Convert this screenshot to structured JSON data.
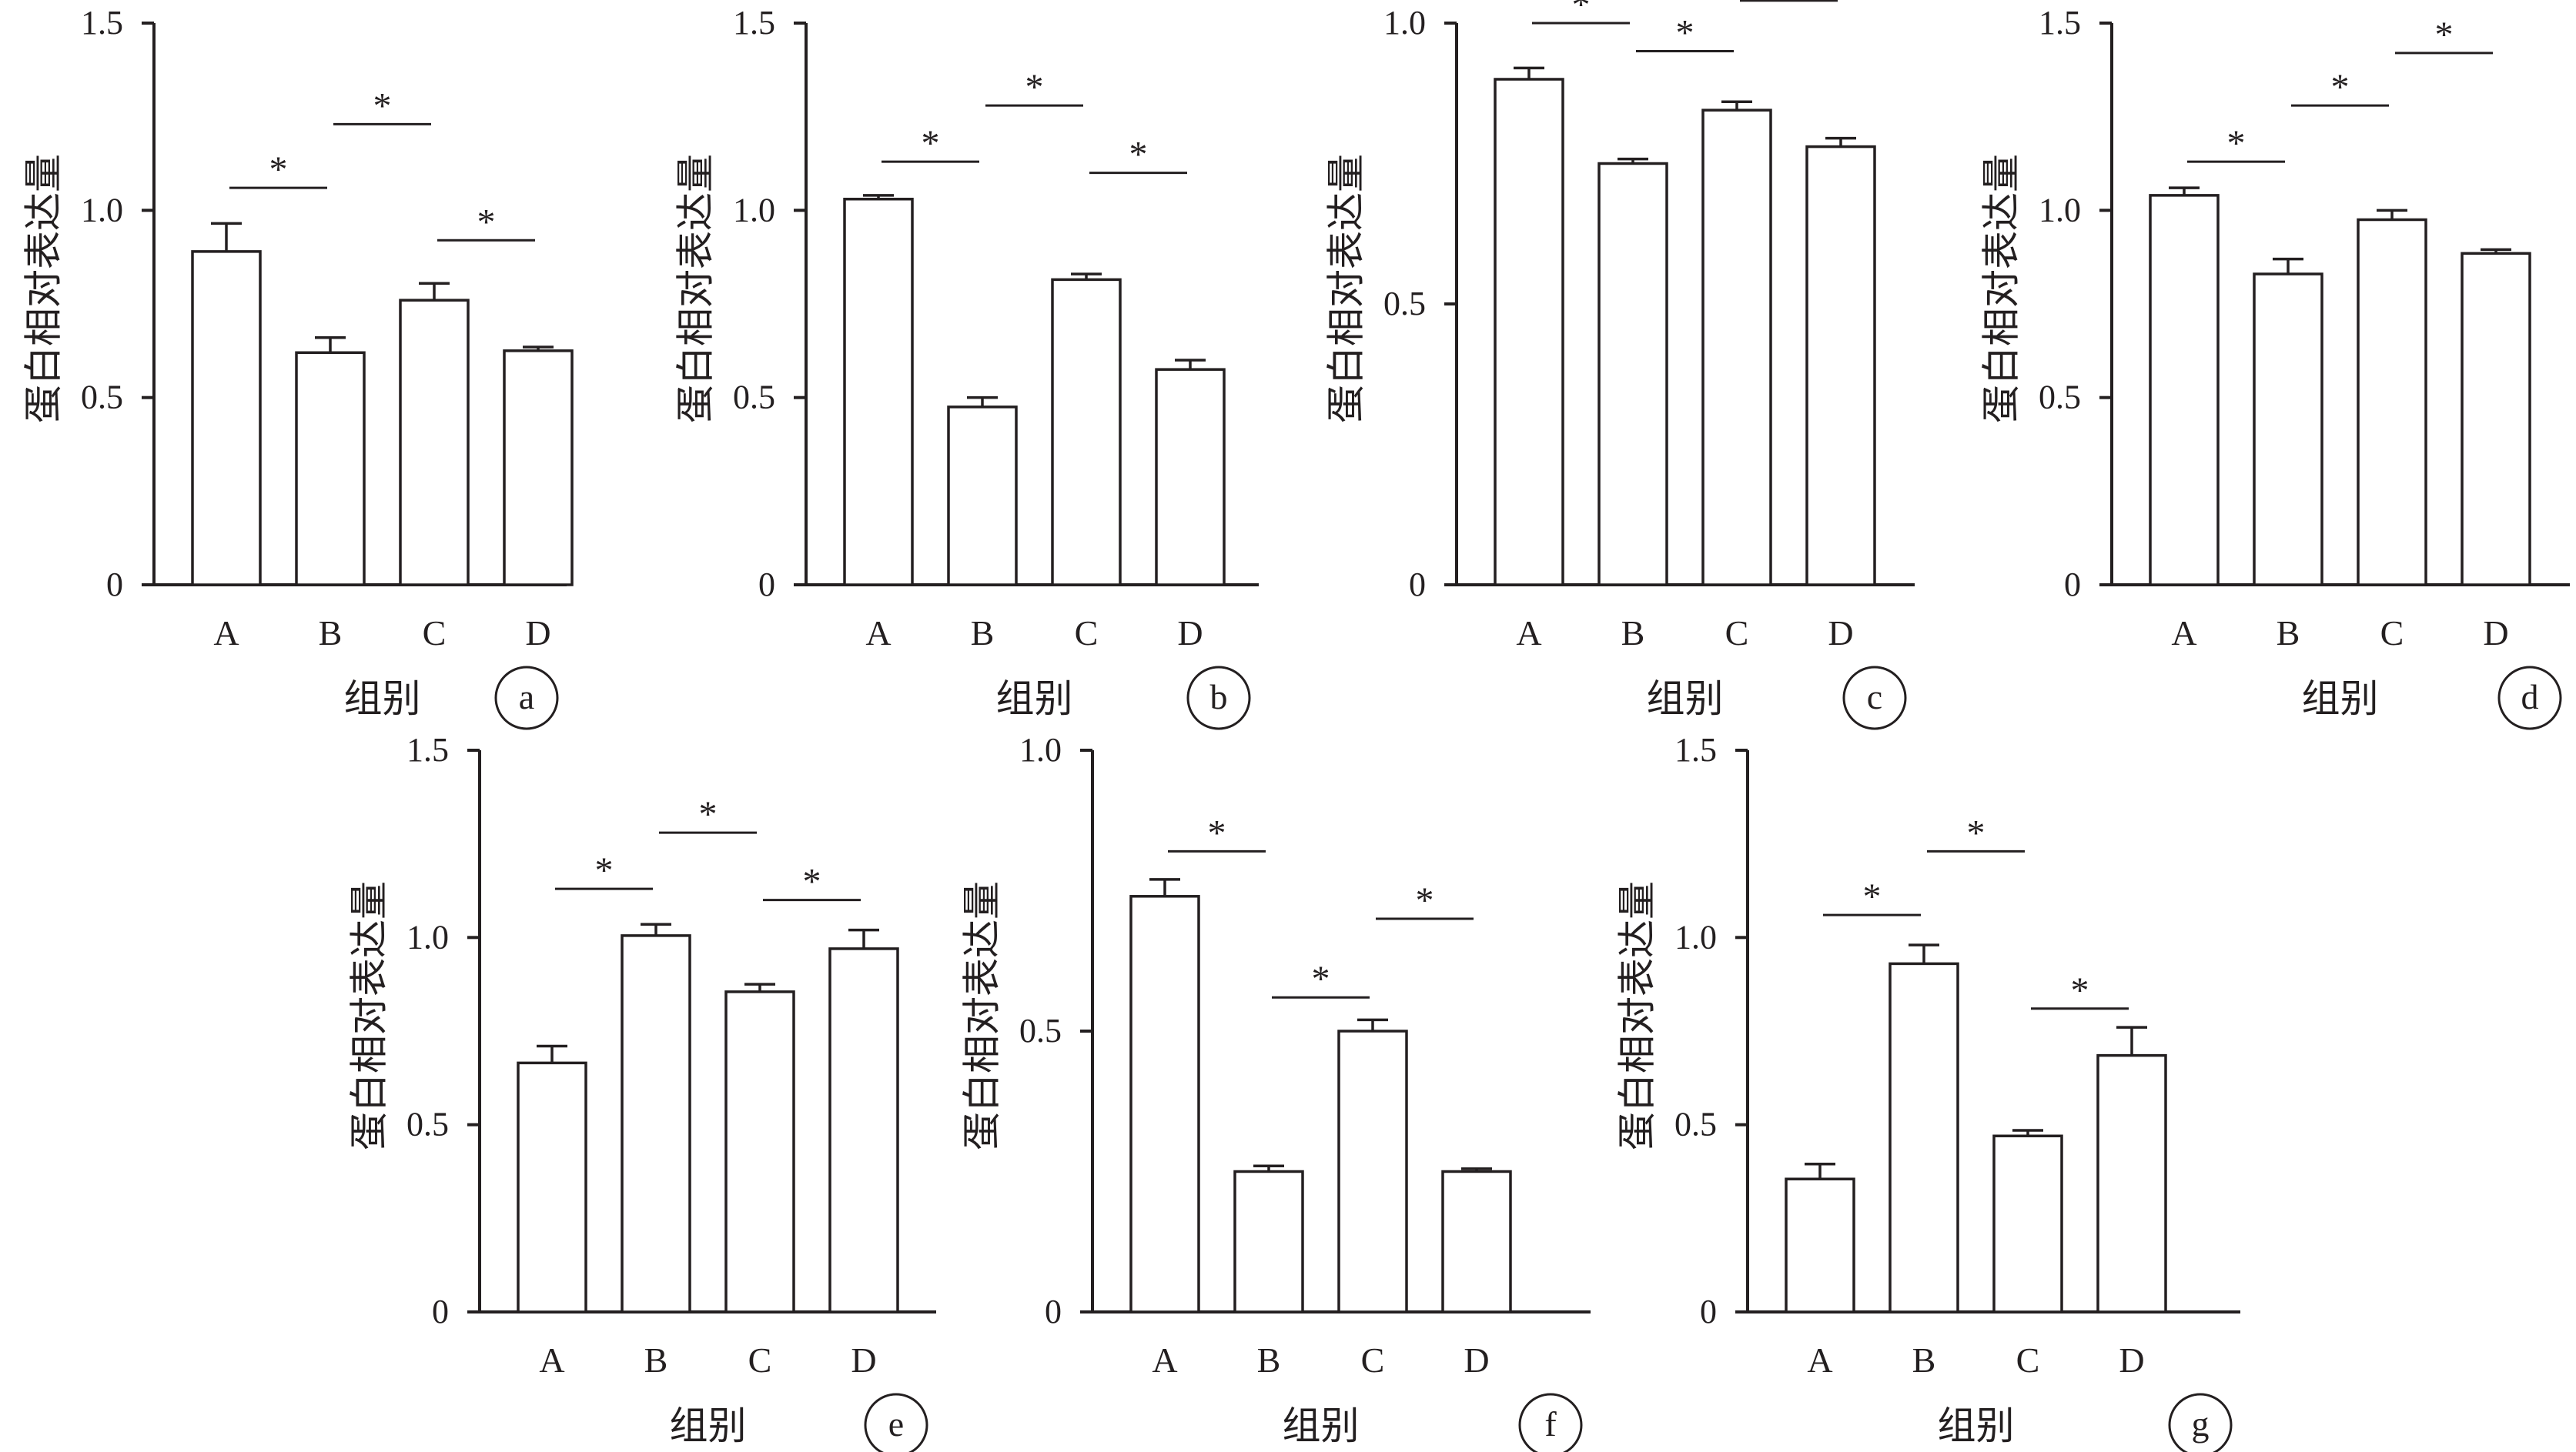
{
  "charts": [
    {
      "panel": "a",
      "type": "bar",
      "ylim": [
        0,
        1.5
      ],
      "ticks": [
        "0",
        "0.5",
        "1.0",
        "1.5"
      ],
      "xlabel": "组别",
      "ylabel": "蛋白相对表达量",
      "categories": [
        "A",
        "B",
        "C",
        "D"
      ],
      "values": [
        0.89,
        0.62,
        0.76,
        0.625
      ],
      "errors": [
        0.075,
        0.04,
        0.045,
        0.01
      ],
      "significance": [
        {
          "from": 0,
          "to": 1,
          "y": 1.06,
          "label": "*"
        },
        {
          "from": 1,
          "to": 2,
          "y": 1.23,
          "label": "*"
        },
        {
          "from": 2,
          "to": 3,
          "y": 0.92,
          "label": "*"
        }
      ]
    },
    {
      "panel": "b",
      "type": "bar",
      "ylim": [
        0,
        1.5
      ],
      "ticks": [
        "0",
        "0.5",
        "1.0",
        "1.5"
      ],
      "xlabel": "组别",
      "ylabel": "蛋白相对表达量",
      "categories": [
        "A",
        "B",
        "C",
        "D"
      ],
      "values": [
        1.03,
        0.475,
        0.815,
        0.575
      ],
      "errors": [
        0.01,
        0.025,
        0.015,
        0.025
      ],
      "significance": [
        {
          "from": 0,
          "to": 1,
          "y": 1.13,
          "label": "*"
        },
        {
          "from": 1,
          "to": 2,
          "y": 1.28,
          "label": "*"
        },
        {
          "from": 2,
          "to": 3,
          "y": 1.1,
          "label": "*"
        }
      ]
    },
    {
      "panel": "c",
      "type": "bar",
      "ylim": [
        0,
        1.0
      ],
      "ticks": [
        "0",
        "0.5",
        "1.0"
      ],
      "xlabel": "组别",
      "ylabel": "蛋白相对表达量",
      "categories": [
        "A",
        "B",
        "C",
        "D"
      ],
      "values": [
        0.9,
        0.75,
        0.845,
        0.78
      ],
      "errors": [
        0.02,
        0.008,
        0.015,
        0.015
      ],
      "significance": [
        {
          "from": 0,
          "to": 1,
          "y": 1.0,
          "label": "*"
        },
        {
          "from": 1,
          "to": 2,
          "y": 0.95,
          "label": "*"
        },
        {
          "from": 2,
          "to": 3,
          "y": 1.04,
          "label": "*"
        }
      ]
    },
    {
      "panel": "d",
      "type": "bar",
      "ylim": [
        0,
        1.5
      ],
      "ticks": [
        "0",
        "0.5",
        "1.0",
        "1.5"
      ],
      "xlabel": "组别",
      "ylabel": "蛋白相对表达量",
      "categories": [
        "A",
        "B",
        "C",
        "D"
      ],
      "values": [
        1.04,
        0.83,
        0.975,
        0.885
      ],
      "errors": [
        0.02,
        0.04,
        0.025,
        0.01
      ],
      "significance": [
        {
          "from": 0,
          "to": 1,
          "y": 1.13,
          "label": "*"
        },
        {
          "from": 1,
          "to": 2,
          "y": 1.28,
          "label": "*"
        },
        {
          "from": 2,
          "to": 3,
          "y": 1.42,
          "label": "*"
        }
      ]
    },
    {
      "panel": "e",
      "type": "bar",
      "ylim": [
        0,
        1.5
      ],
      "ticks": [
        "0",
        "0.5",
        "1.0",
        "1.5"
      ],
      "xlabel": "组别",
      "ylabel": "蛋白相对表达量",
      "categories": [
        "A",
        "B",
        "C",
        "D"
      ],
      "values": [
        0.665,
        1.005,
        0.855,
        0.97
      ],
      "errors": [
        0.045,
        0.03,
        0.02,
        0.05
      ],
      "significance": [
        {
          "from": 0,
          "to": 1,
          "y": 1.13,
          "label": "*"
        },
        {
          "from": 1,
          "to": 2,
          "y": 1.28,
          "label": "*"
        },
        {
          "from": 2,
          "to": 3,
          "y": 1.1,
          "label": "*"
        }
      ]
    },
    {
      "panel": "f",
      "type": "bar",
      "ylim": [
        0,
        1.0
      ],
      "ticks": [
        "0",
        "0.5",
        "1.0"
      ],
      "xlabel": "组别",
      "ylabel": "蛋白相对表达量",
      "categories": [
        "A",
        "B",
        "C",
        "D"
      ],
      "values": [
        0.74,
        0.25,
        0.5,
        0.25
      ],
      "errors": [
        0.03,
        0.01,
        0.02,
        0.005
      ],
      "significance": [
        {
          "from": 0,
          "to": 1,
          "y": 0.82,
          "label": "*"
        },
        {
          "from": 1,
          "to": 2,
          "y": 0.56,
          "label": "*"
        },
        {
          "from": 2,
          "to": 3,
          "y": 0.7,
          "label": "*"
        }
      ]
    },
    {
      "panel": "g",
      "type": "bar",
      "ylim": [
        0,
        1.5
      ],
      "ticks": [
        "0",
        "0.5",
        "1.0",
        "1.5"
      ],
      "xlabel": "组别",
      "ylabel": "蛋白相对表达量",
      "categories": [
        "A",
        "B",
        "C",
        "D"
      ],
      "values": [
        0.355,
        0.93,
        0.47,
        0.685
      ],
      "errors": [
        0.04,
        0.05,
        0.015,
        0.075
      ],
      "significance": [
        {
          "from": 0,
          "to": 1,
          "y": 1.06,
          "label": "*"
        },
        {
          "from": 1,
          "to": 2,
          "y": 1.23,
          "label": "*"
        },
        {
          "from": 2,
          "to": 3,
          "y": 0.81,
          "label": "*"
        }
      ]
    }
  ]
}
